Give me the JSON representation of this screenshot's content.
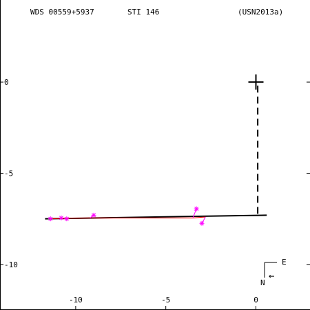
{
  "header": {
    "wds_id": "WDS 00559+5937",
    "discoverer": "STI 146",
    "reference": "(USN2013a)"
  },
  "compass": {
    "east_label": "E",
    "north_label": "N",
    "arrow_glyph": "←"
  },
  "colors": {
    "axes": "#000000",
    "orbit": "#000000",
    "residual": "#ff0000",
    "observation": "#ff00ff"
  },
  "chart_data": {
    "type": "scatter",
    "title": "",
    "xlabel": "",
    "ylabel": "",
    "xlim": [
      -14.2,
      3.0
    ],
    "ylim": [
      -12.5,
      4.5
    ],
    "x_ticks": [
      -10,
      -5,
      0
    ],
    "y_ticks": [
      0,
      -5,
      -10
    ],
    "x_tick_labels": [
      "-10",
      "-5",
      "0"
    ],
    "y_tick_labels": [
      "0",
      "-5",
      "-10"
    ],
    "grid": false,
    "primary": {
      "x": 0.0,
      "y": 0.0
    },
    "orbit_line": [
      [
        -11.7,
        -7.5
      ],
      [
        0.6,
        -7.3
      ]
    ],
    "node_line": [
      [
        0.1,
        -0.2
      ],
      [
        0.1,
        -7.3
      ]
    ],
    "series": [
      {
        "points": [
          {
            "obs": [
              -11.4,
              -7.5
            ],
            "fit": [
              -11.4,
              -7.5
            ]
          },
          {
            "obs": [
              -10.8,
              -7.45
            ],
            "fit": [
              -10.8,
              -7.48
            ]
          },
          {
            "obs": [
              -10.5,
              -7.5
            ],
            "fit": [
              -10.5,
              -7.47
            ]
          },
          {
            "obs": [
              -9.0,
              -7.3
            ],
            "fit": [
              -9.2,
              -7.45
            ]
          },
          {
            "obs": [
              -3.3,
              -6.95
            ],
            "fit": [
              -3.5,
              -7.45
            ]
          },
          {
            "obs": [
              -3.0,
              -7.75
            ],
            "fit": [
              -2.8,
              -7.4
            ]
          }
        ]
      }
    ]
  }
}
